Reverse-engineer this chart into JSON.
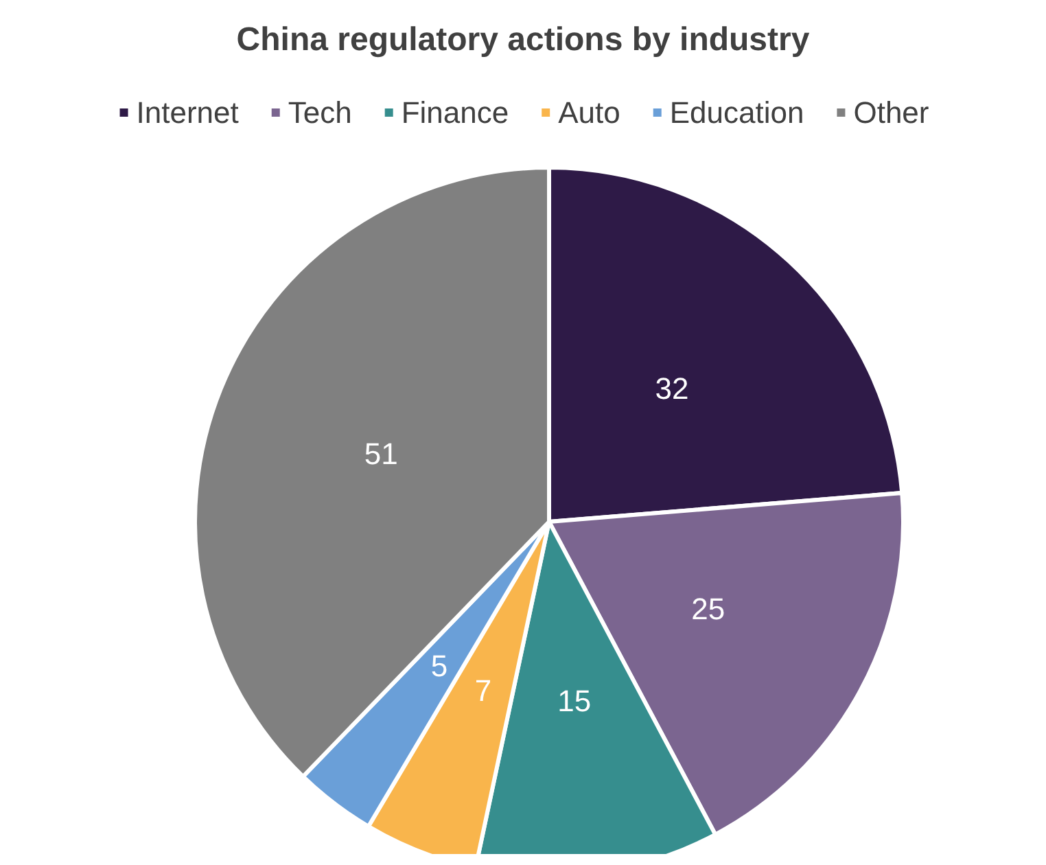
{
  "chart_data": {
    "type": "pie",
    "title": "China regulatory actions by industry",
    "categories": [
      "Internet",
      "Tech",
      "Finance",
      "Auto",
      "Education",
      "Other"
    ],
    "values": [
      32,
      25,
      15,
      7,
      5,
      51
    ],
    "colors": [
      "#2e1a47",
      "#7b6590",
      "#368e8e",
      "#f9b54c",
      "#6a9fd8",
      "#808080"
    ],
    "data_labels": true,
    "legend": "top"
  }
}
